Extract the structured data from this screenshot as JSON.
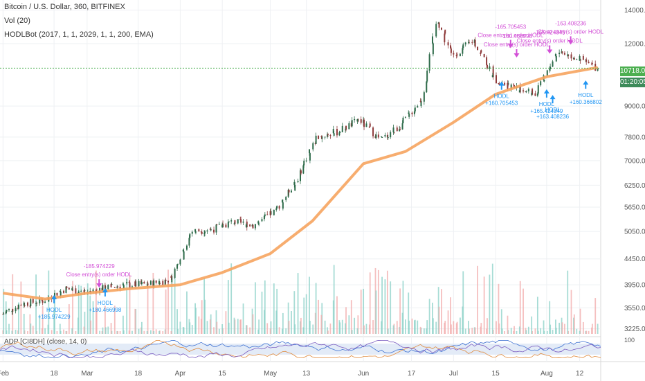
{
  "header": {
    "title": "Bitcoin / U.S. Dollar, 360, BITFINEX",
    "vol_label": "Vol (20)",
    "strategy_label": "HODLBot (2017, 1, 1, 2029, 1, 1, 200, EMA)"
  },
  "lower_pane": {
    "label": "ADP [CI8DH] (close, 14, 0)",
    "axis_label": "100"
  },
  "price_badges": {
    "last_price": "10718.0",
    "countdown": "01:20:05"
  },
  "colors": {
    "background": "#ffffff",
    "grid": "#eef0f3",
    "candle_up": "#2e6b4a",
    "candle_down": "#8f3b3b",
    "ema": "#f6a45f",
    "vol_up": "#8ad0c7",
    "vol_down": "#f2a9a9",
    "signal_buy": "#2196f3",
    "signal_close": "#d24fd6",
    "last_price_line": "#4caf50",
    "countdown_badge": "#3d8b5a",
    "osc_band": "#e3ebf7"
  },
  "chart_data": {
    "type": "line",
    "title": "Bitcoin / U.S. Dollar, 360, BITFINEX",
    "y_scale": "log",
    "ylim": [
      3150,
      14300
    ],
    "y_ticks": [
      14000,
      12000,
      10718,
      9000,
      7800,
      7000,
      6250,
      5650,
      5050,
      4450,
      3950,
      3550,
      3225
    ],
    "x_ticks": [
      "Feb",
      "18",
      "Mar",
      "18",
      "Apr",
      "15",
      "May",
      "13",
      "Jun",
      "17",
      "Jul",
      "15",
      "Aug",
      "12"
    ],
    "grid": true,
    "series": [
      {
        "name": "BTCUSD",
        "type": "candlestick-approx",
        "x": [
          "2019-02-01",
          "2019-02-08",
          "2019-02-15",
          "2019-02-22",
          "2019-03-01",
          "2019-03-08",
          "2019-03-15",
          "2019-03-22",
          "2019-03-29",
          "2019-04-05",
          "2019-04-12",
          "2019-04-19",
          "2019-04-26",
          "2019-05-03",
          "2019-05-10",
          "2019-05-17",
          "2019-05-24",
          "2019-05-31",
          "2019-06-07",
          "2019-06-14",
          "2019-06-21",
          "2019-06-26",
          "2019-07-01",
          "2019-07-08",
          "2019-07-15",
          "2019-07-22",
          "2019-07-29",
          "2019-08-05",
          "2019-08-12",
          "2019-08-18"
        ],
        "values": [
          3450,
          3620,
          3670,
          3880,
          3820,
          3900,
          3950,
          3960,
          4050,
          5050,
          5100,
          5280,
          5200,
          5550,
          6400,
          7800,
          8000,
          8450,
          7700,
          8250,
          9300,
          13500,
          11300,
          12200,
          10200,
          9800,
          9500,
          11600,
          11200,
          10718
        ]
      },
      {
        "name": "EMA 200",
        "x": [
          "2019-02-01",
          "2019-02-15",
          "2019-03-01",
          "2019-03-15",
          "2019-04-01",
          "2019-04-15",
          "2019-05-01",
          "2019-05-15",
          "2019-06-01",
          "2019-06-15",
          "2019-07-01",
          "2019-07-15",
          "2019-08-01",
          "2019-08-18"
        ],
        "values": [
          3800,
          3700,
          3800,
          3880,
          3950,
          4180,
          4560,
          5300,
          6900,
          7300,
          8350,
          9500,
          10300,
          10750
        ]
      }
    ],
    "annotations": [
      {
        "label": "HODL",
        "value": "+185.974229"
      },
      {
        "label": "Close entry(s) order HODL",
        "value": "-185.974229"
      },
      {
        "label": "HODL",
        "value": "+180.466998"
      },
      {
        "label": "HODL",
        "value": "+160.705453"
      },
      {
        "label": "Close entry(s) order HODL",
        "value": "-165.705453"
      },
      {
        "label": "Close entry(s) order HODL",
        "value": "-160.466998"
      },
      {
        "label": "HODL",
        "value": "+165.424349"
      },
      {
        "label": "HODL",
        "value": "+163.408236"
      },
      {
        "label": "Close entry(s) order HODL",
        "value": "-163.408236"
      },
      {
        "label": "Close entry(s) order HODL",
        "value": "-165.424349"
      },
      {
        "label": "HODL",
        "value": "+160.366802"
      }
    ]
  }
}
